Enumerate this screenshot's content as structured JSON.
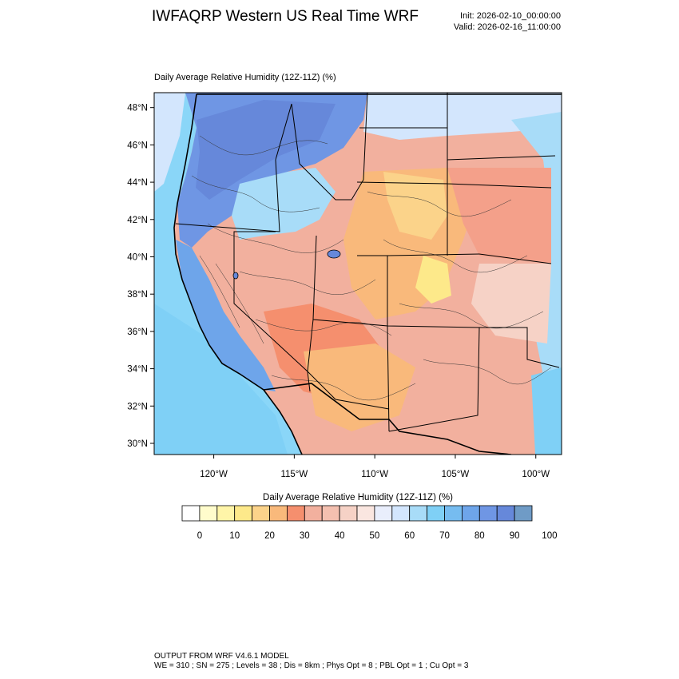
{
  "header": {
    "title": "IWFAQRP Western US Real Time WRF",
    "init": "Init: 2026-02-10_00:00:00",
    "valid": "Valid: 2026-02-16_11:00:00"
  },
  "map": {
    "title": "Daily Average Relative Humidity (12Z-11Z)   (%)",
    "lat_range": [
      29.4,
      48.8
    ],
    "lon_range": [
      -123.7,
      -98.4
    ],
    "lat_ticks": [
      "30°N",
      "32°N",
      "34°N",
      "36°N",
      "38°N",
      "40°N",
      "42°N",
      "44°N",
      "46°N",
      "48°N"
    ],
    "lon_ticks": [
      "120°W",
      "115°W",
      "110°W",
      "105°W",
      "100°W"
    ]
  },
  "colorbar": {
    "title": "Daily Average Relative Humidity (12Z-11Z)  (%)",
    "labels": [
      "0",
      "10",
      "20",
      "30",
      "40",
      "50",
      "60",
      "70",
      "80",
      "90",
      "100"
    ],
    "colors": [
      "#ffffff",
      "#fffccc",
      "#fff5a8",
      "#fde98a",
      "#fbd38a",
      "#f9b97b",
      "#f58f6e",
      "#f2b09e",
      "#f4c0b0",
      "#f6d2c6",
      "#fae6e0",
      "#e9eefc",
      "#d3e6fd",
      "#a8dcf8",
      "#7fd0f6",
      "#76bcf0",
      "#6ea5ea",
      "#6f96e4",
      "#6688da",
      "#6f9bc6"
    ]
  },
  "footer": {
    "line1": "OUTPUT FROM WRF V4.6.1 MODEL",
    "line2": "WE = 310 ; SN = 275 ; Levels = 38 ; Dis = 8km ; Phys Opt = 8 ; PBL Opt = 1 ; Cu Opt = 3"
  }
}
